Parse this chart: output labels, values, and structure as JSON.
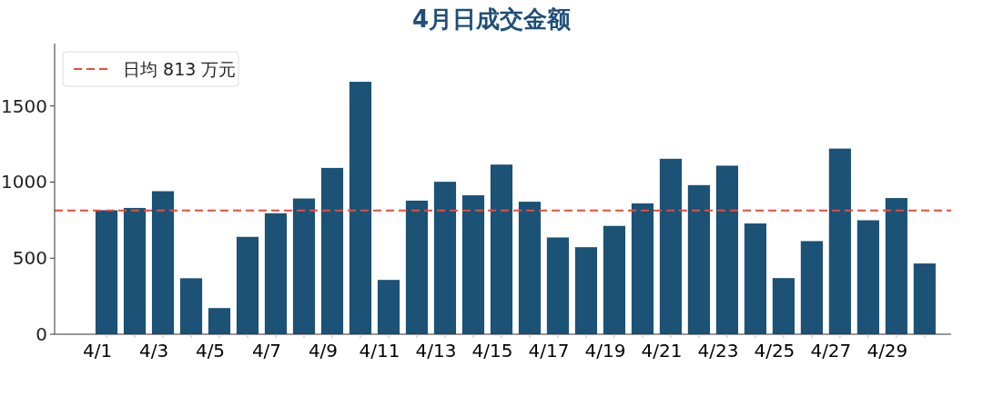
{
  "chart_data": {
    "type": "bar",
    "title": "4月日成交金额",
    "categories": [
      "4/1",
      null,
      "4/3",
      null,
      "4/5",
      null,
      "4/7",
      null,
      "4/9",
      null,
      "4/11",
      null,
      "4/13",
      null,
      "4/15",
      null,
      "4/17",
      null,
      "4/19",
      null,
      "4/21",
      null,
      "4/23",
      null,
      "4/25",
      null,
      "4/27",
      null,
      "4/29",
      null
    ],
    "values": [
      815,
      830,
      940,
      368,
      172,
      640,
      795,
      892,
      1093,
      1659,
      357,
      878,
      1002,
      913,
      1115,
      871,
      636,
      572,
      712,
      860,
      1153,
      980,
      1108,
      728,
      369,
      612,
      1220,
      749,
      895,
      465
    ],
    "color": "#1b5276",
    "ylim": [
      0,
      1910
    ],
    "yticks": [
      0,
      500,
      1000,
      1500
    ],
    "grid": false,
    "ref_lines": [
      {
        "axis": "y",
        "value": 813,
        "label": "日均 813 万元",
        "color": "#e74c3c",
        "line_style": "dashed"
      }
    ],
    "legend": "top left"
  }
}
